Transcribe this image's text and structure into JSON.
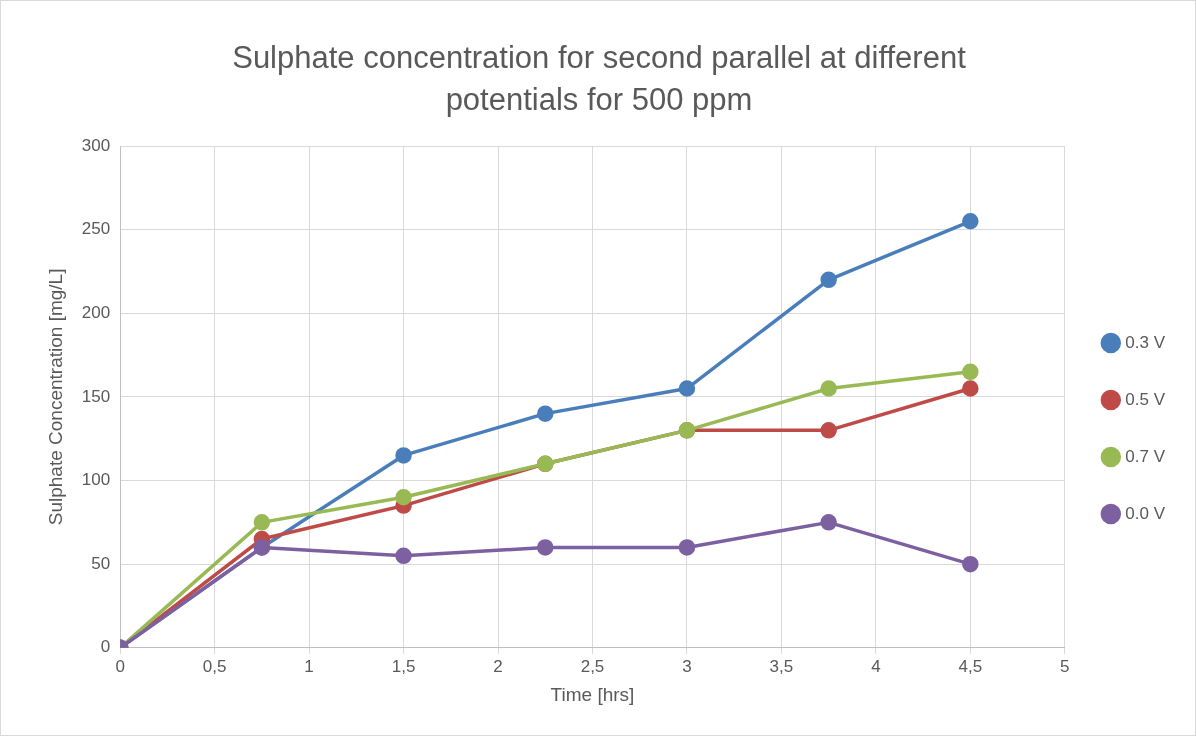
{
  "chart_data": {
    "type": "line",
    "title": "Sulphate concentration for second parallel at different potentials for 500 ppm",
    "xlabel": "Time [hrs]",
    "ylabel": "Sulphate Concentration [mg/L]",
    "x": [
      0,
      0.75,
      1.5,
      2.25,
      3,
      3.75,
      4.5
    ],
    "series": [
      {
        "name": "0.3 V",
        "color": "#4a7ebb",
        "values": [
          0,
          60,
          115,
          140,
          155,
          220,
          255
        ]
      },
      {
        "name": "0.5 V",
        "color": "#be4b48",
        "values": [
          0,
          65,
          85,
          110,
          130,
          130,
          155
        ]
      },
      {
        "name": "0.7 V",
        "color": "#98b954",
        "values": [
          0,
          75,
          90,
          110,
          130,
          155,
          165
        ]
      },
      {
        "name": "0.0 V",
        "color": "#7d60a0",
        "values": [
          0,
          60,
          55,
          60,
          60,
          75,
          50
        ]
      }
    ],
    "xlim": [
      0,
      5
    ],
    "xticks": [
      0,
      {
        "value": 0.5,
        "label": "0,5"
      },
      1,
      {
        "value": 1.5,
        "label": "1,5"
      },
      2,
      {
        "value": 2.5,
        "label": "2,5"
      },
      3,
      {
        "value": 3.5,
        "label": "3,5"
      },
      4,
      {
        "value": 4.5,
        "label": "4,5"
      },
      5
    ],
    "ylim": [
      0,
      300
    ],
    "yticks": [
      0,
      50,
      100,
      150,
      200,
      250,
      300
    ],
    "grid": true,
    "legend": "right",
    "marker": "circle",
    "line_style": "solid"
  }
}
